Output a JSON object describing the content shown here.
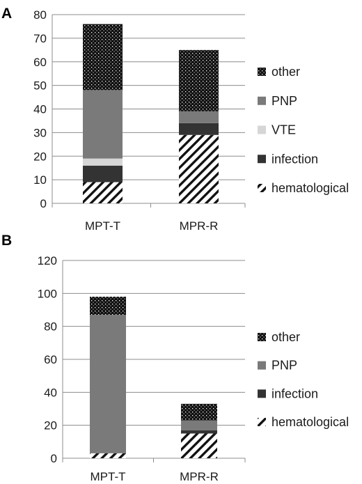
{
  "patterns": {
    "other": "dots",
    "PNP": "solid",
    "VTE": "solid",
    "infection": "solid",
    "hematological": "diagonal-hatch"
  },
  "colors": {
    "other": "#111111",
    "PNP": "#7a7a7a",
    "VTE": "#d6d6d6",
    "infection": "#333333",
    "hematological": "#111111",
    "grid": "#8c8c8c",
    "axis": "#8c8c8c"
  },
  "chart_data": [
    {
      "panel": "A",
      "type": "bar",
      "stacked": true,
      "categories": [
        "MPT-T",
        "MPR-R"
      ],
      "series": [
        {
          "name": "hematological",
          "values": [
            9,
            29
          ]
        },
        {
          "name": "infection",
          "values": [
            7,
            5
          ]
        },
        {
          "name": "VTE",
          "values": [
            3,
            0
          ]
        },
        {
          "name": "PNP",
          "values": [
            29,
            5
          ]
        },
        {
          "name": "other",
          "values": [
            28,
            26
          ]
        }
      ],
      "ylim": [
        0,
        80
      ],
      "yticks": [
        "0",
        "10",
        "20",
        "30",
        "40",
        "50",
        "60",
        "70",
        "80"
      ],
      "grid": true,
      "legend_position": "right"
    },
    {
      "panel": "B",
      "type": "bar",
      "stacked": true,
      "categories": [
        "MPT-T",
        "MPR-R"
      ],
      "series": [
        {
          "name": "hematological",
          "values": [
            3,
            15
          ]
        },
        {
          "name": "infection",
          "values": [
            0,
            2
          ]
        },
        {
          "name": "PNP",
          "values": [
            84,
            6
          ]
        },
        {
          "name": "other",
          "values": [
            11,
            10
          ]
        }
      ],
      "ylim": [
        0,
        120
      ],
      "yticks": [
        "0",
        "20",
        "40",
        "60",
        "80",
        "100",
        "120"
      ],
      "grid": true,
      "legend_position": "right"
    }
  ]
}
